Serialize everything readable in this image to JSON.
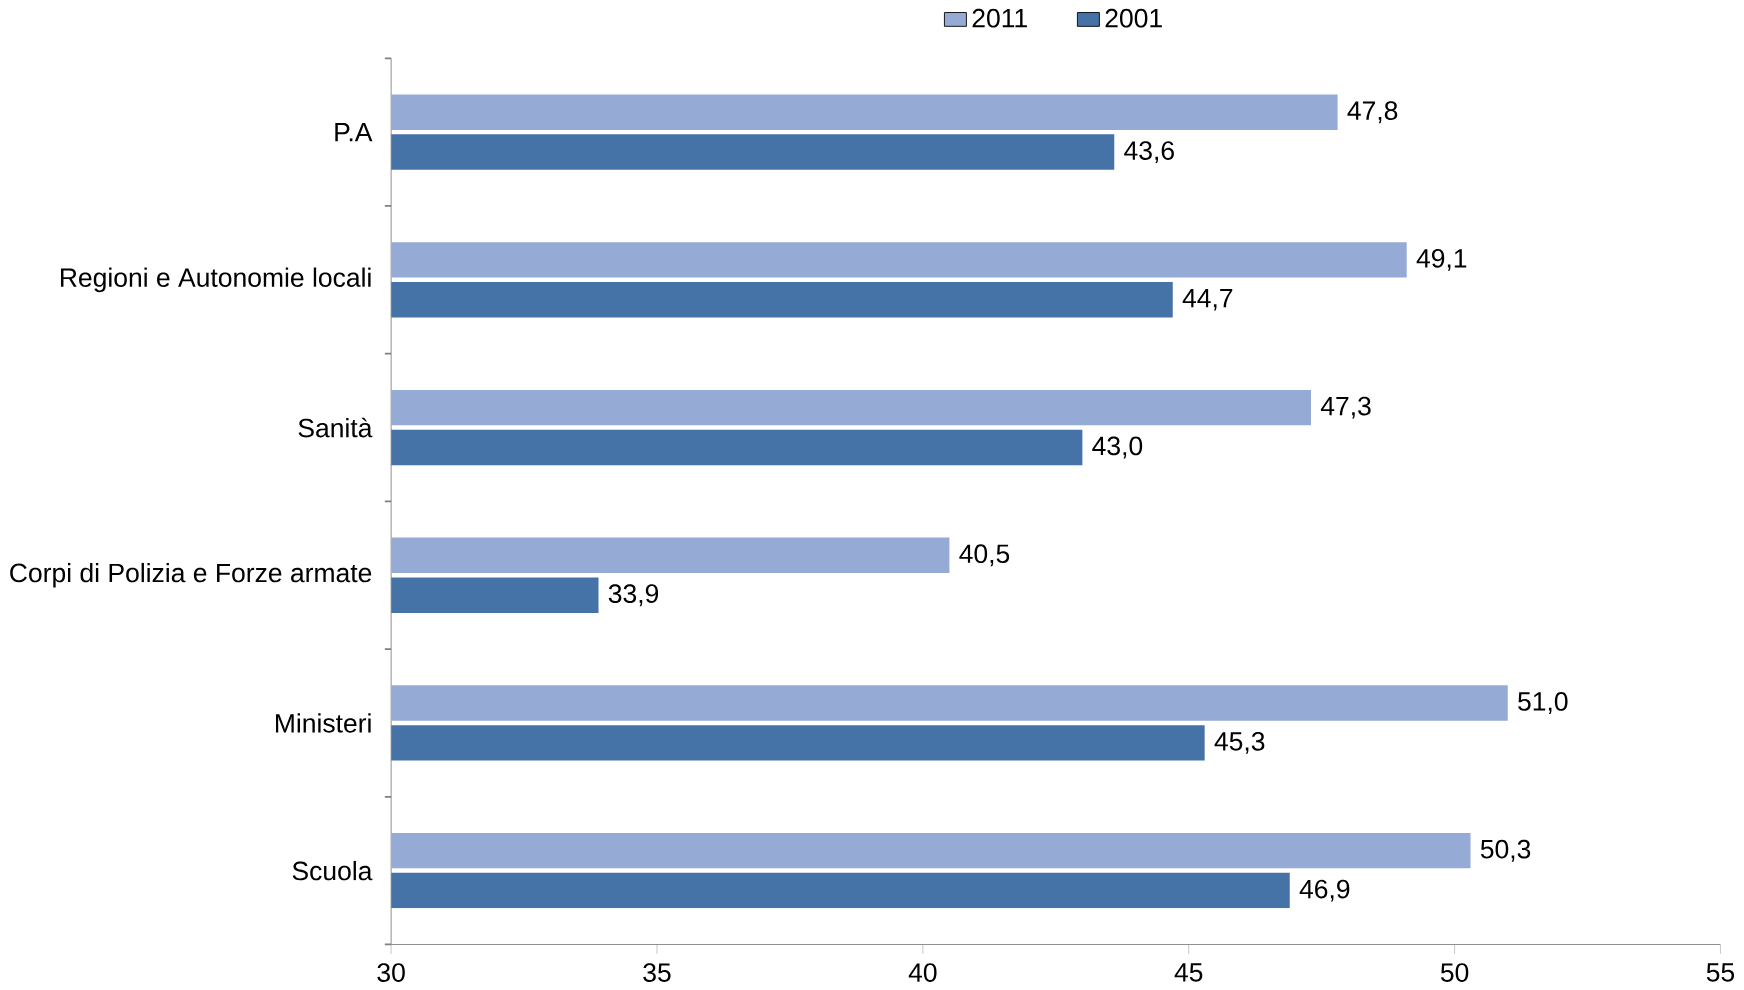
{
  "chart_data": {
    "type": "bar",
    "orientation": "horizontal",
    "legend": "top",
    "categories": [
      "P.A",
      "Regioni e Autonomie locali",
      "Sanità",
      "Corpi di Polizia e Forze armate",
      "Ministeri",
      "Scuola"
    ],
    "series": [
      {
        "name": "2011",
        "color": "#95abd5",
        "values": [
          47.8,
          49.1,
          47.3,
          40.5,
          51.0,
          50.3
        ],
        "value_labels": [
          "47,8",
          "49,1",
          "47,3",
          "40,5",
          "51,0",
          "50,3"
        ]
      },
      {
        "name": "2001",
        "color": "#4572a7",
        "values": [
          43.6,
          44.7,
          43.0,
          33.9,
          45.3,
          46.9
        ],
        "value_labels": [
          "43,6",
          "44,7",
          "43,0",
          "33,9",
          "45,3",
          "46,9"
        ]
      }
    ],
    "xlim": [
      30,
      55
    ],
    "xticks": [
      30,
      35,
      40,
      45,
      50,
      55
    ]
  }
}
